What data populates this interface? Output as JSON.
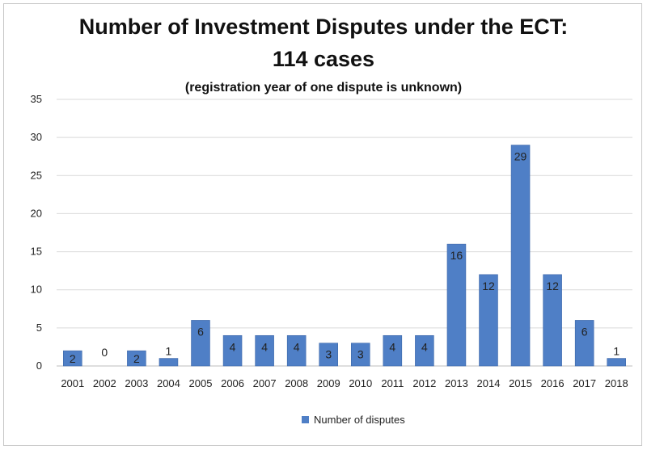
{
  "chart_data": {
    "type": "bar",
    "title": "Number of Investment Disputes under the ECT:",
    "title_line2": "114 cases",
    "subtitle": "(registration year of one dispute is unknown)",
    "categories": [
      "2001",
      "2002",
      "2003",
      "2004",
      "2005",
      "2006",
      "2007",
      "2008",
      "2009",
      "2010",
      "2011",
      "2012",
      "2013",
      "2014",
      "2015",
      "2016",
      "2017",
      "2018"
    ],
    "series": [
      {
        "name": "Number of disputes",
        "values": [
          2,
          0,
          2,
          1,
          6,
          4,
          4,
          4,
          3,
          3,
          4,
          4,
          16,
          12,
          29,
          12,
          6,
          1
        ]
      }
    ],
    "ylim": [
      0,
      35
    ],
    "yticks": [
      0,
      5,
      10,
      15,
      20,
      25,
      30,
      35
    ],
    "grid": true,
    "legend": "bottom",
    "bar_color": "#4f7fc6",
    "bar_edge_color": "#3d67a8",
    "grid_color": "#d9d9d9",
    "label_color": "#222222"
  }
}
